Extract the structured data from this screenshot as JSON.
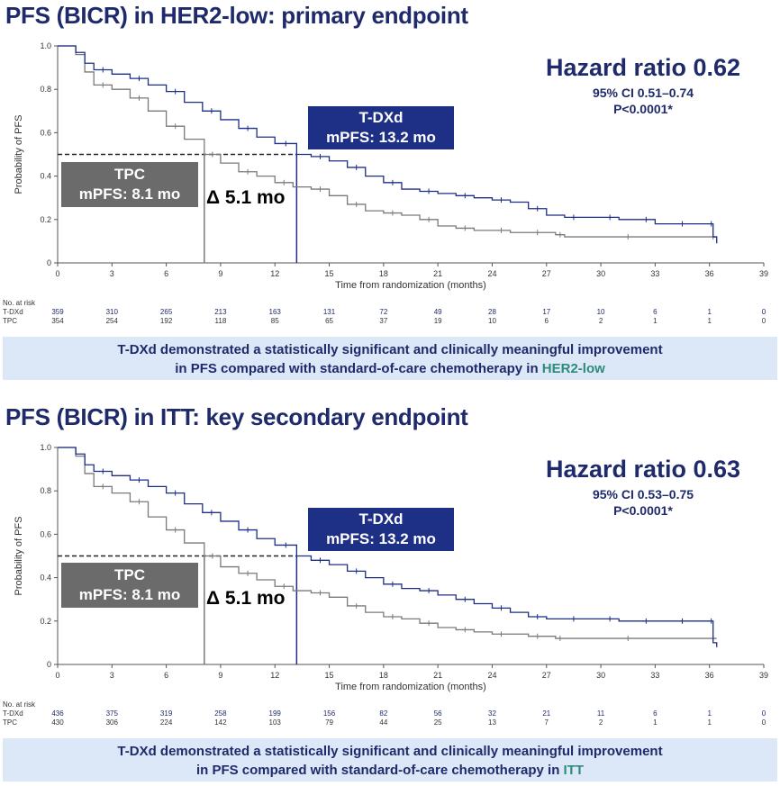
{
  "panels": [
    {
      "title": "PFS (BICR) in HER2-low: primary endpoint",
      "hazard_ratio": "Hazard ratio 0.62",
      "ci": "95% CI 0.51–0.74",
      "p_value": "P<0.0001*",
      "tdxd_box": {
        "line1": "T-DXd",
        "line2": "mPFS: 13.2 mo"
      },
      "tpc_box": {
        "line1": "TPC",
        "line2": "mPFS: 8.1 mo"
      },
      "delta_label": "Δ 5.1 mo",
      "risk": {
        "header": "No. at risk",
        "tdxd_label": "T-DXd",
        "tpc_label": "TPC",
        "tdxd": [
          "359",
          "310",
          "265",
          "213",
          "163",
          "131",
          "72",
          "49",
          "28",
          "17",
          "10",
          "6",
          "1",
          "0"
        ],
        "tpc": [
          "354",
          "254",
          "192",
          "118",
          "85",
          "65",
          "37",
          "19",
          "10",
          "6",
          "2",
          "1",
          "1",
          "0"
        ]
      },
      "banner": {
        "line1": "T-DXd demonstrated a statistically significant and clinically meaningful improvement",
        "line2_prefix": "in PFS compared with standard-of-care chemotherapy in ",
        "line2_highlight": "HER2-low"
      }
    },
    {
      "title": "PFS (BICR) in ITT: key secondary endpoint",
      "hazard_ratio": "Hazard ratio 0.63",
      "ci": "95% CI 0.53–0.75",
      "p_value": "P<0.0001*",
      "tdxd_box": {
        "line1": "T-DXd",
        "line2": "mPFS: 13.2 mo"
      },
      "tpc_box": {
        "line1": "TPC",
        "line2": "mPFS: 8.1 mo"
      },
      "delta_label": "Δ 5.1 mo",
      "risk": {
        "header": "No. at risk",
        "tdxd_label": "T-DXd",
        "tpc_label": "TPC",
        "tdxd": [
          "436",
          "375",
          "319",
          "258",
          "199",
          "156",
          "82",
          "56",
          "32",
          "21",
          "11",
          "6",
          "1",
          "0"
        ],
        "tpc": [
          "430",
          "306",
          "224",
          "142",
          "103",
          "79",
          "44",
          "25",
          "13",
          "7",
          "2",
          "1",
          "1",
          "0"
        ]
      },
      "banner": {
        "line1": "T-DXd demonstrated a statistically significant and clinically meaningful improvement",
        "line2_prefix": "in PFS compared with standard-of-care chemotherapy in ",
        "line2_highlight": "ITT"
      }
    }
  ],
  "chart_data": [
    {
      "type": "line",
      "title": "PFS (BICR) in HER2-low: primary endpoint",
      "xlabel": "Time from randomization (months)",
      "ylabel": "Probability of PFS",
      "xlim": [
        0,
        39
      ],
      "ylim": [
        0,
        1.0
      ],
      "xticks": [
        0,
        3,
        6,
        9,
        12,
        15,
        18,
        21,
        24,
        27,
        30,
        33,
        36,
        39
      ],
      "yticks": [
        "0",
        "0.2",
        "0.4",
        "0.6",
        "0.8",
        "1.0"
      ],
      "grid": false,
      "median_line_y": 0.5,
      "medians": {
        "T-DXd": 13.2,
        "TPC": 8.1
      },
      "series": [
        {
          "name": "T-DXd",
          "color": "#1e2f86",
          "x": [
            0,
            1,
            1.5,
            2,
            3,
            4,
            5,
            6,
            7,
            8,
            9,
            10,
            11,
            12,
            13.2,
            14,
            15,
            16,
            17,
            18,
            19,
            20,
            21,
            22,
            23,
            24,
            25,
            26,
            27,
            28,
            29,
            30,
            31,
            32,
            33,
            34,
            35,
            36,
            36.2,
            36.4
          ],
          "y": [
            1.0,
            0.97,
            0.92,
            0.89,
            0.87,
            0.85,
            0.82,
            0.79,
            0.74,
            0.7,
            0.66,
            0.62,
            0.58,
            0.55,
            0.5,
            0.49,
            0.47,
            0.44,
            0.4,
            0.37,
            0.34,
            0.33,
            0.32,
            0.31,
            0.3,
            0.29,
            0.28,
            0.25,
            0.22,
            0.21,
            0.21,
            0.21,
            0.2,
            0.2,
            0.18,
            0.18,
            0.18,
            0.18,
            0.12,
            0.09
          ]
        },
        {
          "name": "TPC",
          "color": "#7a7a7a",
          "x": [
            0,
            1,
            1.5,
            2,
            3,
            4,
            5,
            6,
            7,
            8.1,
            9,
            10,
            11,
            12,
            13,
            14,
            15,
            16,
            17,
            18,
            19,
            20,
            21,
            22,
            23,
            24,
            25,
            26,
            27,
            27.5,
            28,
            30,
            33,
            36,
            36.4
          ],
          "y": [
            1.0,
            0.96,
            0.88,
            0.82,
            0.8,
            0.76,
            0.7,
            0.63,
            0.57,
            0.5,
            0.46,
            0.42,
            0.4,
            0.37,
            0.35,
            0.34,
            0.31,
            0.27,
            0.24,
            0.23,
            0.22,
            0.2,
            0.17,
            0.16,
            0.15,
            0.15,
            0.14,
            0.14,
            0.14,
            0.13,
            0.12,
            0.12,
            0.12,
            0.12,
            0.12
          ]
        }
      ]
    },
    {
      "type": "line",
      "title": "PFS (BICR) in ITT: key secondary endpoint",
      "xlabel": "Time from randomization (months)",
      "ylabel": "Probability of PFS",
      "xlim": [
        0,
        39
      ],
      "ylim": [
        0,
        1.0
      ],
      "xticks": [
        0,
        3,
        6,
        9,
        12,
        15,
        18,
        21,
        24,
        27,
        30,
        33,
        36,
        39
      ],
      "yticks": [
        "0",
        "0.2",
        "0.4",
        "0.6",
        "0.8",
        "1.0"
      ],
      "grid": false,
      "median_line_y": 0.5,
      "medians": {
        "T-DXd": 13.2,
        "TPC": 8.1
      },
      "series": [
        {
          "name": "T-DXd",
          "color": "#1e2f86",
          "x": [
            0,
            1,
            1.5,
            2,
            3,
            4,
            5,
            6,
            7,
            8,
            9,
            10,
            11,
            12,
            13.2,
            14,
            15,
            16,
            17,
            18,
            19,
            20,
            21,
            22,
            23,
            24,
            25,
            26,
            27,
            28,
            29,
            30,
            31,
            32,
            33,
            34,
            35,
            36,
            36.2,
            36.4
          ],
          "y": [
            1.0,
            0.97,
            0.92,
            0.89,
            0.87,
            0.85,
            0.82,
            0.79,
            0.74,
            0.7,
            0.66,
            0.62,
            0.58,
            0.55,
            0.5,
            0.48,
            0.46,
            0.43,
            0.4,
            0.37,
            0.35,
            0.34,
            0.32,
            0.3,
            0.28,
            0.26,
            0.24,
            0.22,
            0.21,
            0.21,
            0.21,
            0.21,
            0.2,
            0.2,
            0.2,
            0.2,
            0.2,
            0.2,
            0.1,
            0.08
          ]
        },
        {
          "name": "TPC",
          "color": "#7a7a7a",
          "x": [
            0,
            1,
            1.5,
            2,
            3,
            4,
            5,
            6,
            7,
            8.1,
            9,
            10,
            11,
            12,
            13,
            14,
            15,
            16,
            17,
            18,
            19,
            20,
            21,
            22,
            23,
            24,
            25,
            26,
            27,
            27.5,
            28,
            30,
            33,
            36,
            36.4
          ],
          "y": [
            1.0,
            0.96,
            0.88,
            0.82,
            0.79,
            0.75,
            0.68,
            0.62,
            0.56,
            0.5,
            0.45,
            0.42,
            0.39,
            0.36,
            0.34,
            0.33,
            0.31,
            0.27,
            0.24,
            0.22,
            0.21,
            0.19,
            0.17,
            0.16,
            0.15,
            0.14,
            0.14,
            0.13,
            0.13,
            0.12,
            0.12,
            0.12,
            0.12,
            0.12,
            0.12
          ]
        }
      ]
    }
  ]
}
